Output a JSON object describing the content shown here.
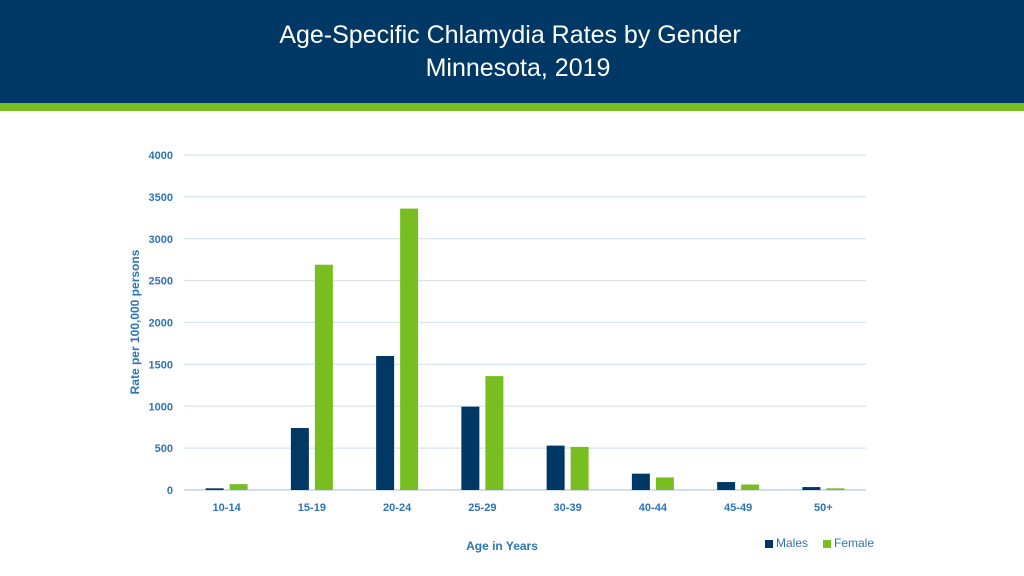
{
  "header": {
    "title_line1": "Age-Specific Chlamydia Rates by Gender",
    "title_line2": "Minnesota, 2019"
  },
  "colors": {
    "header_bg": "#003865",
    "header_stripe": "#78be21",
    "males": "#003865",
    "female": "#78be21",
    "axis_text": "#2e75b6",
    "gridline": "#d6e4f0"
  },
  "chart_data": {
    "type": "bar",
    "title": "Age-Specific Chlamydia Rates by Gender",
    "subtitle": "Minnesota, 2019",
    "xlabel": "Age in Years",
    "ylabel": "Rate per 100,000 persons",
    "categories": [
      "10-14",
      "15-19",
      "20-24",
      "25-29",
      "30-39",
      "40-44",
      "45-49",
      "50+"
    ],
    "series": [
      {
        "name": "Males",
        "values": [
          20,
          740,
          1600,
          995,
          530,
          195,
          95,
          35
        ]
      },
      {
        "name": "Female",
        "values": [
          70,
          2690,
          3360,
          1360,
          515,
          150,
          65,
          20
        ]
      }
    ],
    "ylim": [
      0,
      4000
    ],
    "yticks": [
      "0",
      "500",
      "1000",
      "1500",
      "2000",
      "2500",
      "3000",
      "3500",
      "4000"
    ],
    "grid": true,
    "legend": "bottom-right"
  }
}
